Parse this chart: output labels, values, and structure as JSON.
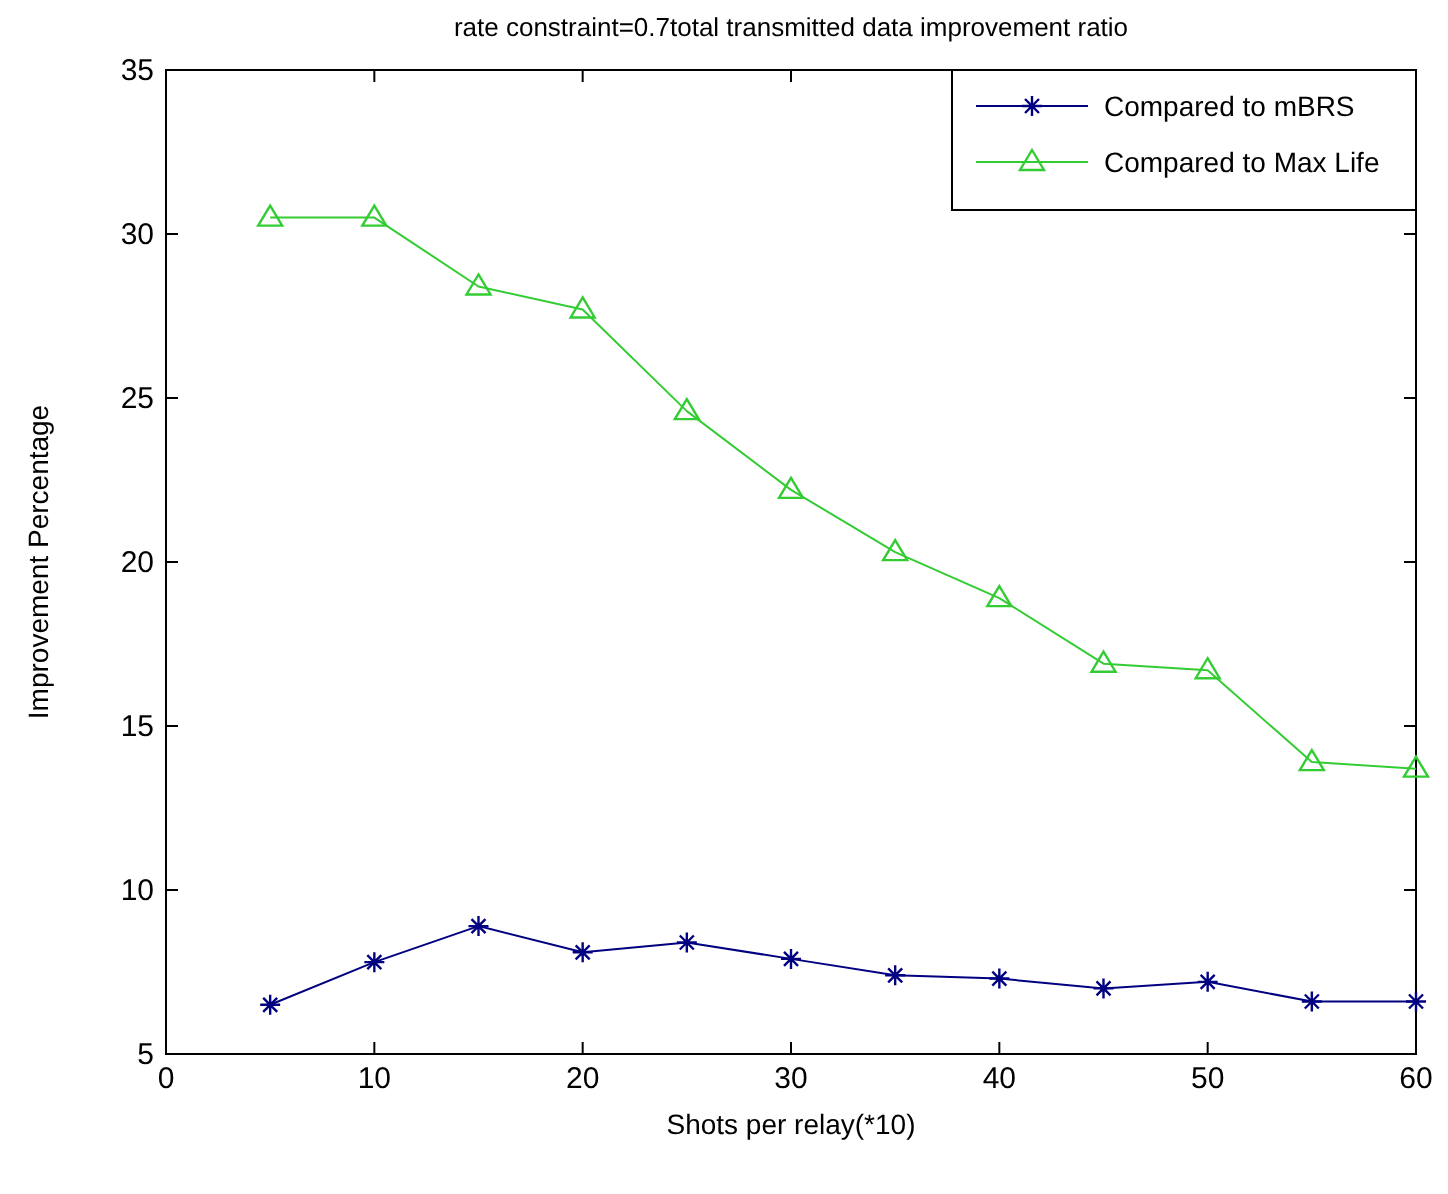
{
  "chart_data": {
    "type": "line",
    "title": "rate constraint=0.7total transmitted data improvement ratio",
    "xlabel": "Shots per relay(*10)",
    "ylabel": "Improvement Percentage",
    "x": [
      5,
      10,
      15,
      20,
      25,
      30,
      35,
      40,
      45,
      50,
      55,
      60
    ],
    "series": [
      {
        "name": "Compared to mBRS",
        "color": "#000080",
        "marker": "cross",
        "values": [
          6.5,
          7.8,
          8.9,
          8.1,
          8.4,
          7.9,
          7.4,
          7.3,
          7.0,
          7.2,
          6.6,
          6.6
        ]
      },
      {
        "name": "Compared to Max Life",
        "color": "#33cc33",
        "marker": "triangle",
        "values": [
          30.5,
          30.5,
          28.4,
          27.7,
          24.6,
          22.2,
          20.3,
          18.9,
          16.9,
          16.7,
          13.9,
          13.7
        ]
      }
    ],
    "xlim": [
      0,
      60
    ],
    "xticks": [
      0,
      10,
      20,
      30,
      40,
      50,
      60
    ],
    "ylim": [
      5,
      35
    ],
    "yticks": [
      5,
      10,
      15,
      20,
      25,
      30,
      35
    ],
    "legend": "top right",
    "grid": false,
    "line_style": "solid"
  }
}
